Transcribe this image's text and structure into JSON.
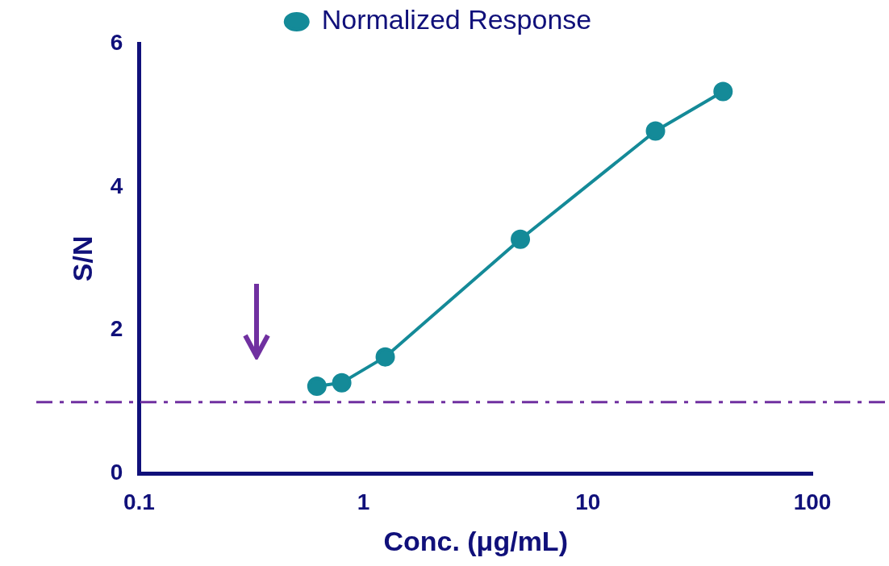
{
  "chart_data": {
    "type": "line",
    "xlabel": "Conc. (μg/mL)",
    "ylabel": "S/N",
    "log": "x",
    "x": [
      0.62,
      0.8,
      1.25,
      5,
      20,
      40
    ],
    "series": [
      {
        "name": "Normalized Response",
        "color": "#148a98",
        "values": [
          1.22,
          1.27,
          1.63,
          3.27,
          4.78,
          5.33
        ]
      }
    ],
    "xlim": [
      0.1,
      100
    ],
    "xticks": [
      0.1,
      1,
      10,
      100
    ],
    "ylim": [
      0,
      6
    ],
    "yticks": [
      0,
      2,
      4,
      6
    ],
    "ref_lines": [
      {
        "axis": "y",
        "value": 1,
        "color": "#7030a0",
        "line_style": "dashdot"
      }
    ],
    "marker": "circle",
    "legend": "top",
    "grid": false
  }
}
